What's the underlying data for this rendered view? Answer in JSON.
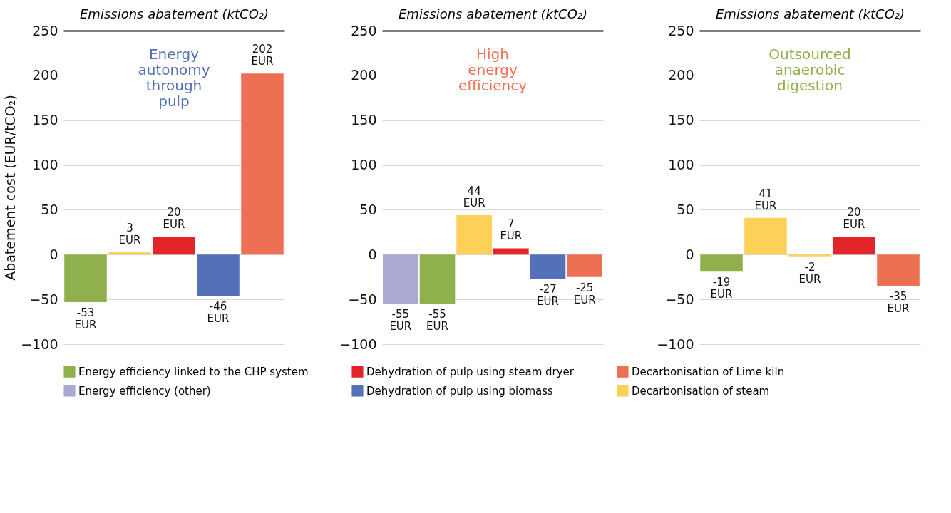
{
  "chart_data": [
    {
      "type": "bar",
      "title": "Energy autonomy through pulp",
      "xlabel": "Emissions abatement (ktCO₂)",
      "ylabel": "Abatement cost (EUR/tCO₂)",
      "categories": [
        null,
        null,
        null,
        null,
        null
      ],
      "ylim": [
        -100,
        250
      ],
      "yticks": [
        -100,
        -50,
        0,
        50,
        100,
        150,
        200,
        250
      ],
      "grid": "y",
      "legend": "bottom",
      "series": [
        {
          "name": "Energy efficiency linked to the CHP system",
          "color": "#8fb04c",
          "values": [
            -53,
            null,
            null,
            null,
            null
          ],
          "value_labels": [
            "-53 EUR",
            null,
            null,
            null,
            null
          ]
        },
        {
          "name": "Dehydration of pulp using steam dryer",
          "color": "#e3242b",
          "values": [
            null,
            null,
            20,
            null,
            null
          ],
          "value_labels": [
            null,
            null,
            "20 EUR",
            null,
            null
          ]
        },
        {
          "name": "Decarbonisation of Lime kiln",
          "color": "#ee7054",
          "values": [
            null,
            null,
            null,
            null,
            202
          ],
          "value_labels": [
            null,
            null,
            null,
            null,
            "202 EUR"
          ]
        },
        {
          "name": "Energy efficiency (other)",
          "color": "#a9a9d4",
          "values": [
            null,
            null,
            null,
            null,
            null
          ],
          "value_labels": [
            null,
            null,
            null,
            null,
            null
          ]
        },
        {
          "name": "Dehydration of pulp using biomass",
          "color": "#5470b8",
          "values": [
            null,
            null,
            null,
            -46,
            null
          ],
          "value_labels": [
            null,
            null,
            null,
            "-46 EUR",
            null
          ]
        },
        {
          "name": "Decarbonisation of steam",
          "color": "#fdd058",
          "values": [
            null,
            3,
            null,
            null,
            null
          ],
          "value_labels": [
            null,
            "3 EUR",
            null,
            null,
            null
          ]
        }
      ]
    },
    {
      "type": "bar",
      "title": "High energy efficiency",
      "xlabel": "Emissions abatement (ktCO₂)",
      "categories": [
        null,
        null,
        null,
        null,
        null,
        null
      ],
      "ylim": [
        -100,
        250
      ],
      "yticks": [
        -100,
        -50,
        0,
        50,
        100,
        150,
        200,
        250
      ],
      "grid": "y",
      "series": [
        {
          "color": "#8fb04c",
          "values": [
            null,
            -55,
            null,
            null,
            null,
            null
          ],
          "value_labels": [
            null,
            "-55 EUR",
            null,
            null,
            null,
            null
          ]
        },
        {
          "color": "#e3242b",
          "values": [
            null,
            null,
            null,
            7,
            null,
            null
          ],
          "value_labels": [
            null,
            null,
            null,
            "7 EUR",
            null,
            null
          ]
        },
        {
          "color": "#ee7054",
          "values": [
            null,
            null,
            null,
            null,
            null,
            -25
          ],
          "value_labels": [
            null,
            null,
            null,
            null,
            null,
            "-25 EUR"
          ]
        },
        {
          "color": "#a9a9d4",
          "values": [
            -55,
            null,
            null,
            null,
            null,
            null
          ],
          "value_labels": [
            "-55 EUR",
            null,
            null,
            null,
            null,
            null
          ]
        },
        {
          "color": "#5470b8",
          "values": [
            null,
            null,
            null,
            null,
            -27,
            null
          ],
          "value_labels": [
            null,
            null,
            null,
            null,
            "-27 EUR",
            null
          ]
        },
        {
          "color": "#fdd058",
          "values": [
            null,
            null,
            44,
            null,
            null,
            null
          ],
          "value_labels": [
            null,
            null,
            "44 EUR",
            null,
            null,
            null
          ]
        }
      ]
    },
    {
      "type": "bar",
      "title": "Outsourced anaerobic digestion",
      "xlabel": "Emissions abatement (ktCO₂)",
      "categories": [
        null,
        null,
        null,
        null,
        null
      ],
      "ylim": [
        -100,
        250
      ],
      "yticks": [
        -100,
        -50,
        0,
        50,
        100,
        150,
        200,
        250
      ],
      "grid": "y",
      "series": [
        {
          "color": "#8fb04c",
          "values": [
            -19,
            null,
            null,
            null,
            null
          ],
          "value_labels": [
            "-19 EUR",
            null,
            null,
            null,
            null
          ]
        },
        {
          "color": "#e3242b",
          "values": [
            null,
            null,
            null,
            20,
            null
          ],
          "value_labels": [
            null,
            null,
            null,
            "20 EUR",
            null
          ]
        },
        {
          "color": "#ee7054",
          "values": [
            null,
            null,
            null,
            null,
            -35
          ],
          "value_labels": [
            null,
            null,
            null,
            null,
            "-35 EUR"
          ]
        },
        {
          "color": "#fdd058",
          "values": [
            null,
            41,
            -2,
            null,
            null
          ],
          "value_labels": [
            null,
            "41 EUR",
            "-2 EUR",
            null,
            null
          ]
        }
      ]
    }
  ]
}
